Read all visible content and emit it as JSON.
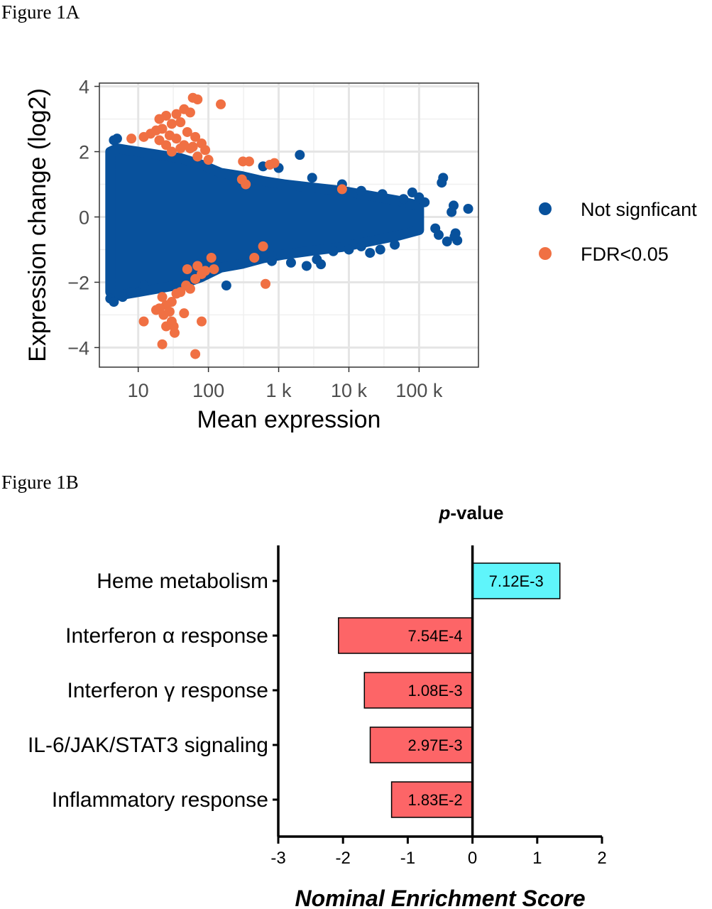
{
  "figures": {
    "a_label": "Figure 1A",
    "b_label": "Figure 1B"
  },
  "chart_data": [
    {
      "type": "scatter",
      "title": "",
      "xlabel": "Mean expression",
      "ylabel": "Expression change (log2)",
      "x_scale": "log",
      "xlim": [
        2.8,
        700000
      ],
      "ylim": [
        -4.6,
        4.1
      ],
      "x_ticks": [
        {
          "value": 10,
          "label": "10"
        },
        {
          "value": 100,
          "label": "100"
        },
        {
          "value": 1000,
          "label": "1 k"
        },
        {
          "value": 10000,
          "label": "10 k"
        },
        {
          "value": 100000,
          "label": "100 k"
        }
      ],
      "y_ticks": [
        {
          "value": 4,
          "label": "4"
        },
        {
          "value": 2,
          "label": "2"
        },
        {
          "value": 0,
          "label": "0"
        },
        {
          "value": -2,
          "label": "−2"
        },
        {
          "value": -4,
          "label": "−4"
        }
      ],
      "grid": true,
      "legend_position": "right",
      "series": [
        {
          "name": "Not signficant",
          "color": "#08519c",
          "cloud_note_free": true,
          "cloud": [
            [
              4,
              0,
              2.0
            ],
            [
              5,
              0,
              2.1
            ],
            [
              7,
              0,
              2.05
            ],
            [
              10,
              0,
              2.0
            ],
            [
              20,
              0,
              1.9
            ],
            [
              40,
              0,
              1.8
            ],
            [
              80,
              0,
              1.6
            ],
            [
              150,
              0,
              1.35
            ],
            [
              300,
              0,
              1.25
            ],
            [
              600,
              0,
              1.1
            ],
            [
              1200,
              0,
              1.0
            ],
            [
              3000,
              0,
              0.9
            ],
            [
              8000,
              0,
              0.8
            ],
            [
              20000,
              0,
              0.65
            ],
            [
              50000,
              0,
              0.5
            ],
            [
              100000,
              0,
              0.35
            ]
          ],
          "points": [
            [
              2000,
              1.9
            ],
            [
              600,
              1.55
            ],
            [
              1000,
              1.5
            ],
            [
              3000,
              1.2
            ],
            [
              8000,
              1.0
            ],
            [
              15000,
              0.8
            ],
            [
              30000,
              0.7
            ],
            [
              60000,
              0.55
            ],
            [
              120000,
              0.45
            ],
            [
              220000,
              1.2
            ],
            [
              210000,
              1.05
            ],
            [
              500000,
              0.25
            ],
            [
              290000,
              0.15
            ],
            [
              310000,
              0.35
            ],
            [
              100000,
              0.6
            ],
            [
              80000,
              0.75
            ],
            [
              330000,
              -0.5
            ],
            [
              350000,
              -0.72
            ],
            [
              320000,
              -0.6
            ],
            [
              250000,
              -0.75
            ],
            [
              170000,
              -0.35
            ],
            [
              190000,
              -0.55
            ],
            [
              45000,
              -0.85
            ],
            [
              28000,
              -1.0
            ],
            [
              20000,
              -1.1
            ],
            [
              15000,
              -0.9
            ],
            [
              10000,
              -1.0
            ],
            [
              6000,
              -1.05
            ],
            [
              3500,
              -1.3
            ],
            [
              2500,
              -1.5
            ],
            [
              1500,
              -1.4
            ],
            [
              800,
              -1.2
            ],
            [
              500,
              -1.05
            ],
            [
              180,
              -2.1
            ],
            [
              4,
              -2.5
            ],
            [
              4.5,
              -2.6
            ],
            [
              6,
              -2.45
            ],
            [
              8,
              -2.3
            ],
            [
              12,
              -2.1
            ],
            [
              4.5,
              2.35
            ],
            [
              5,
              2.4
            ],
            [
              800,
              -1.35
            ],
            [
              4000,
              -1.45
            ]
          ]
        },
        {
          "name": "FDR<0.05",
          "color": "#f07043",
          "points": [
            [
              60,
              3.65
            ],
            [
              70,
              3.6
            ],
            [
              150,
              3.45
            ],
            [
              45,
              3.3
            ],
            [
              55,
              3.2
            ],
            [
              35,
              3.15
            ],
            [
              25,
              3.1
            ],
            [
              20,
              3.0
            ],
            [
              40,
              2.9
            ],
            [
              30,
              2.85
            ],
            [
              22,
              2.7
            ],
            [
              18,
              2.65
            ],
            [
              15,
              2.55
            ],
            [
              50,
              2.6
            ],
            [
              28,
              2.5
            ],
            [
              12,
              2.45
            ],
            [
              8,
              2.4
            ],
            [
              65,
              2.45
            ],
            [
              35,
              2.4
            ],
            [
              20,
              2.35
            ],
            [
              25,
              2.2
            ],
            [
              80,
              2.25
            ],
            [
              60,
              2.15
            ],
            [
              45,
              2.2
            ],
            [
              40,
              2.1
            ],
            [
              90,
              2.05
            ],
            [
              30,
              2.0
            ],
            [
              55,
              2.1
            ],
            [
              70,
              1.85
            ],
            [
              100,
              1.75
            ],
            [
              310,
              1.7
            ],
            [
              380,
              1.7
            ],
            [
              750,
              1.6
            ],
            [
              870,
              1.65
            ],
            [
              300,
              1.15
            ],
            [
              340,
              1.0
            ],
            [
              8000,
              0.85
            ],
            [
              110,
              -1.25
            ],
            [
              450,
              -1.25
            ],
            [
              600,
              -0.9
            ],
            [
              50,
              -1.6
            ],
            [
              70,
              -1.5
            ],
            [
              90,
              -1.65
            ],
            [
              120,
              -1.6
            ],
            [
              80,
              -1.75
            ],
            [
              65,
              -1.9
            ],
            [
              48,
              -2.1
            ],
            [
              40,
              -2.3
            ],
            [
              35,
              -2.35
            ],
            [
              22,
              -2.45
            ],
            [
              30,
              -2.6
            ],
            [
              25,
              -2.7
            ],
            [
              20,
              -2.8
            ],
            [
              18,
              -2.85
            ],
            [
              28,
              -2.9
            ],
            [
              23,
              -3.0
            ],
            [
              45,
              -2.95
            ],
            [
              30,
              -3.2
            ],
            [
              32,
              -3.35
            ],
            [
              25,
              -3.35
            ],
            [
              12,
              -3.2
            ],
            [
              80,
              -3.2
            ],
            [
              33,
              -3.55
            ],
            [
              22,
              -3.9
            ],
            [
              65,
              -4.2
            ],
            [
              650,
              -2.05
            ],
            [
              55,
              -2.2
            ]
          ]
        }
      ]
    },
    {
      "type": "bar",
      "orientation": "horizontal",
      "title": "p-value",
      "title_italic_part": "p",
      "title_rest": "-value",
      "xlabel": "Nominal Enrichment Score",
      "ylabel": "",
      "xlim": [
        -3,
        2
      ],
      "x_ticks": [
        {
          "value": -3,
          "label": "-3"
        },
        {
          "value": -2,
          "label": "-2"
        },
        {
          "value": -1,
          "label": "-1"
        },
        {
          "value": 0,
          "label": "0"
        },
        {
          "value": 1,
          "label": "1"
        },
        {
          "value": 2,
          "label": "2"
        }
      ],
      "categories": [
        "Heme metabolism",
        "Interferon α response",
        "Interferon γ response",
        "IL-6/JAK/STAT3 signaling",
        "Inflammatory response"
      ],
      "values": [
        1.35,
        -2.07,
        -1.67,
        -1.58,
        -1.25
      ],
      "pvalues": [
        "7.12E-3",
        "7.54E-4",
        "1.08E-3",
        "2.97E-3",
        "1.83E-2"
      ],
      "colors": {
        "positive": "#5ff5fb",
        "negative": "#fd6567"
      }
    }
  ]
}
